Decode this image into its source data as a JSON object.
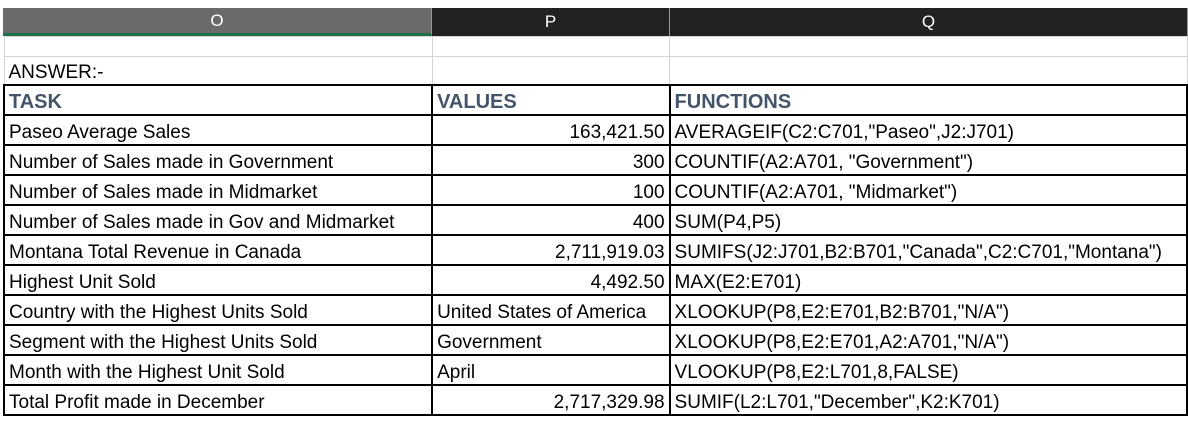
{
  "column_headers": [
    "O",
    "P",
    "Q"
  ],
  "answer_label": "ANSWER:-",
  "table": {
    "headers": [
      "TASK",
      "VALUES",
      "FUNCTIONS"
    ],
    "rows": [
      {
        "task": "Paseo Average Sales",
        "value": "163,421.50",
        "function": "AVERAGEIF(C2:C701,\"Paseo\",J2:J701)"
      },
      {
        "task": "Number of Sales made in Government",
        "value": "300",
        "function": "COUNTIF(A2:A701, \"Government\")"
      },
      {
        "task": "Number of Sales made in Midmarket",
        "value": "100",
        "function": "COUNTIF(A2:A701, \"Midmarket\")"
      },
      {
        "task": "Number of Sales made in Gov and Midmarket",
        "value": "400",
        "function": "SUM(P4,P5)"
      },
      {
        "task": "Montana Total Revenue in Canada",
        "value": "2,711,919.03",
        "function": "SUMIFS(J2:J701,B2:B701,\"Canada\",C2:C701,\"Montana\")"
      },
      {
        "task": "Highest Unit Sold",
        "value": "4,492.50",
        "function": "MAX(E2:E701)"
      },
      {
        "task": "Country with the Highest Units Sold",
        "value": "United States of America",
        "function": "XLOOKUP(P8,E2:E701,B2:B701,\"N/A\")"
      },
      {
        "task": "Segment with the Highest Units Sold",
        "value": "Government",
        "function": "XLOOKUP(P8,E2:E701,A2:A701,\"N/A\")"
      },
      {
        "task": "Month with the Highest Unit Sold",
        "value": "April",
        "function": "VLOOKUP(P8,E2:L701,8,FALSE)"
      },
      {
        "task": "Total Profit made in December",
        "value": "2,717,329.98",
        "function": "SUMIF(L2:L701,\"December\",K2:K701)"
      }
    ]
  }
}
